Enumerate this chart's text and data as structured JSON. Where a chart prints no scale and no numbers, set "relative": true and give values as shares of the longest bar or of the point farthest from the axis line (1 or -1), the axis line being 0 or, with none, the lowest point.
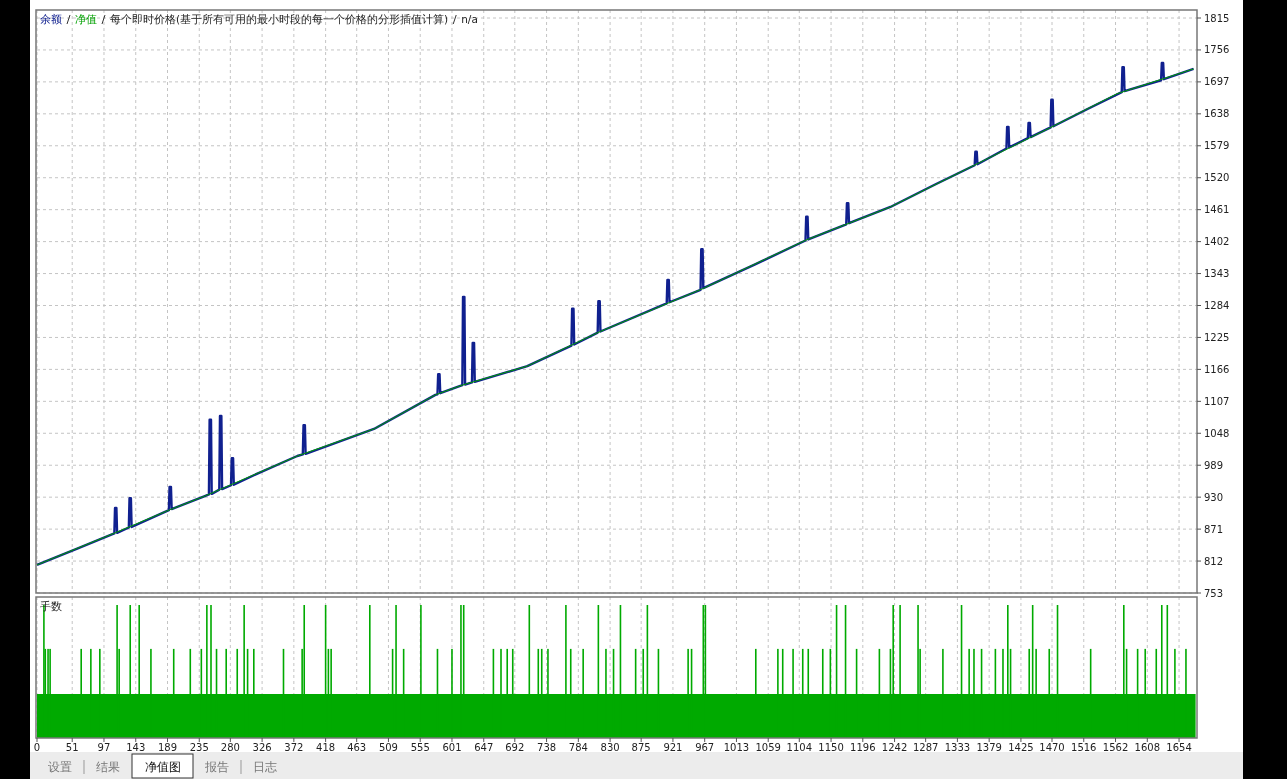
{
  "chart_data": [
    {
      "type": "line",
      "legend": "top left",
      "grid": true,
      "tick_labels": "y",
      "xlim": [
        0,
        1680
      ],
      "ylim": [
        753,
        1815
      ],
      "xticks": [
        0,
        51,
        97,
        143,
        189,
        235,
        280,
        326,
        372,
        418,
        463,
        509,
        555,
        601,
        647,
        692,
        738,
        784,
        830,
        875,
        921,
        967,
        1013,
        1059,
        1104,
        1150,
        1196,
        1242,
        1287,
        1333,
        1379,
        1425,
        1470,
        1516,
        1562,
        1608,
        1654
      ],
      "yticks": [
        753,
        812,
        871,
        930,
        989,
        1048,
        1107,
        1166,
        1225,
        1284,
        1343,
        1402,
        1461,
        1520,
        1579,
        1638,
        1697,
        1756,
        1815
      ],
      "annotations": [
        "每个即时价格(基于所有可用的最小时段的每一个价格的分形插值计算)",
        "n/a"
      ],
      "series": [
        {
          "name": "余额",
          "color": "#10208f",
          "x": [
            0,
            60,
            112,
            113,
            115,
            116,
            133,
            134,
            136,
            137,
            191,
            192,
            194,
            195,
            243,
            249,
            250,
            252,
            253,
            264,
            265,
            267,
            268,
            281,
            282,
            284,
            285,
            320,
            377,
            385,
            386,
            388,
            389,
            488,
            577,
            580,
            581,
            583,
            584,
            616,
            617,
            619,
            620,
            630,
            631,
            633,
            634,
            710,
            774,
            775,
            777,
            778,
            812,
            813,
            815,
            816,
            912,
            913,
            915,
            916,
            961,
            962,
            964,
            965,
            1040,
            1113,
            1114,
            1116,
            1117,
            1172,
            1173,
            1175,
            1176,
            1236,
            1300,
            1358,
            1359,
            1361,
            1362,
            1404,
            1405,
            1407,
            1408,
            1435,
            1436,
            1438,
            1439,
            1468,
            1469,
            1471,
            1472,
            1520,
            1571,
            1572,
            1574,
            1575,
            1628,
            1629,
            1631,
            1632,
            1675
          ],
          "values": [
            805,
            836,
            863,
            910,
            910,
            864,
            874,
            928,
            928,
            875,
            906,
            949,
            949,
            908,
            932,
            935,
            1073,
            1073,
            936,
            944,
            1080,
            1080,
            945,
            952,
            1002,
            1002,
            953,
            974,
            1006,
            1009,
            1063,
            1063,
            1010,
            1056,
            1119,
            1120,
            1157,
            1157,
            1122,
            1137,
            1300,
            1300,
            1138,
            1142,
            1215,
            1215,
            1143,
            1172,
            1210,
            1278,
            1278,
            1212,
            1234,
            1292,
            1292,
            1236,
            1288,
            1331,
            1331,
            1290,
            1313,
            1388,
            1388,
            1316,
            1360,
            1404,
            1448,
            1448,
            1406,
            1434,
            1473,
            1473,
            1436,
            1466,
            1507,
            1543,
            1568,
            1568,
            1545,
            1574,
            1614,
            1614,
            1576,
            1593,
            1621,
            1621,
            1595,
            1613,
            1664,
            1664,
            1615,
            1646,
            1678,
            1724,
            1724,
            1680,
            1700,
            1732,
            1732,
            1702,
            1721
          ]
        },
        {
          "name": "净值",
          "color": "#00a000",
          "x": [
            0,
            113,
            191,
            243,
            377,
            488,
            577,
            616,
            710,
            814,
            964,
            1114,
            1236,
            1370,
            1470,
            1564,
            1675
          ],
          "values": [
            805,
            864,
            906,
            932,
            1006,
            1056,
            1119,
            1137,
            1172,
            1235,
            1315,
            1405,
            1466,
            1551,
            1614,
            1675,
            1721
          ]
        }
      ]
    },
    {
      "type": "bar",
      "title": "手数",
      "relative": true,
      "grid": "x",
      "tick_labels": "x",
      "xlim": [
        0,
        1680
      ],
      "xticks": [
        0,
        51,
        97,
        143,
        189,
        235,
        280,
        326,
        372,
        418,
        463,
        509,
        555,
        601,
        647,
        692,
        738,
        784,
        830,
        875,
        921,
        967,
        1013,
        1059,
        1104,
        1150,
        1196,
        1242,
        1287,
        1333,
        1379,
        1425,
        1470,
        1516,
        1562,
        1608,
        1654
      ],
      "annotations": [
        "设置",
        "结果",
        "净值图",
        "报告",
        "日志"
      ],
      "series": [
        {
          "type": "area",
          "color": "#00aa00",
          "x": [
            0,
            1678
          ],
          "values": [
            0.33,
            0.33
          ]
        },
        {
          "color": "#00aa00",
          "x": [
            10,
            12,
            16,
            19,
            64,
            78,
            91,
            116,
            119,
            135,
            148,
            165,
            198,
            222,
            238,
            246,
            252,
            260,
            274,
            290,
            300,
            305,
            314,
            357,
            384,
            387,
            418,
            422,
            426,
            482,
            515,
            520,
            531,
            556,
            580,
            601,
            614,
            618,
            661,
            672,
            681,
            689,
            713,
            726,
            731,
            740,
            766,
            773,
            791,
            813,
            824,
            835,
            845,
            867,
            878,
            884,
            900,
            943,
            948,
            965,
            968,
            1041,
            1073,
            1080,
            1095,
            1109,
            1117,
            1138,
            1149,
            1158,
            1171,
            1187,
            1220,
            1236,
            1240,
            1250,
            1276,
            1279,
            1312,
            1339,
            1350,
            1357,
            1368,
            1388,
            1399,
            1406,
            1410,
            1437,
            1442,
            1447,
            1466,
            1478,
            1526,
            1574,
            1578,
            1594,
            1605,
            1621,
            1629,
            1637,
            1648,
            1664
          ],
          "values": [
            1,
            0.67,
            0.67,
            0.67,
            0.67,
            0.67,
            0.67,
            1,
            0.67,
            1,
            1,
            0.67,
            0.67,
            0.67,
            0.67,
            1,
            1,
            0.67,
            0.67,
            0.67,
            1,
            0.67,
            0.67,
            0.67,
            0.67,
            1,
            1,
            0.67,
            0.67,
            1,
            0.67,
            1,
            0.67,
            1,
            0.67,
            0.67,
            1,
            1,
            0.67,
            0.67,
            0.67,
            0.67,
            1,
            0.67,
            0.67,
            0.67,
            1,
            0.67,
            0.67,
            1,
            0.67,
            0.67,
            1,
            0.67,
            0.67,
            1,
            0.67,
            0.67,
            0.67,
            1,
            1,
            0.67,
            0.67,
            0.67,
            0.67,
            0.67,
            0.67,
            0.67,
            0.67,
            1,
            1,
            0.67,
            0.67,
            0.67,
            1,
            1,
            1,
            0.67,
            0.67,
            1,
            0.67,
            0.67,
            0.67,
            0.67,
            0.67,
            1,
            0.67,
            0.67,
            1,
            0.67,
            0.67,
            1,
            0.67,
            1,
            0.67,
            0.67,
            0.67,
            0.67,
            1,
            1,
            0.67,
            0.67
          ]
        }
      ]
    }
  ]
}
